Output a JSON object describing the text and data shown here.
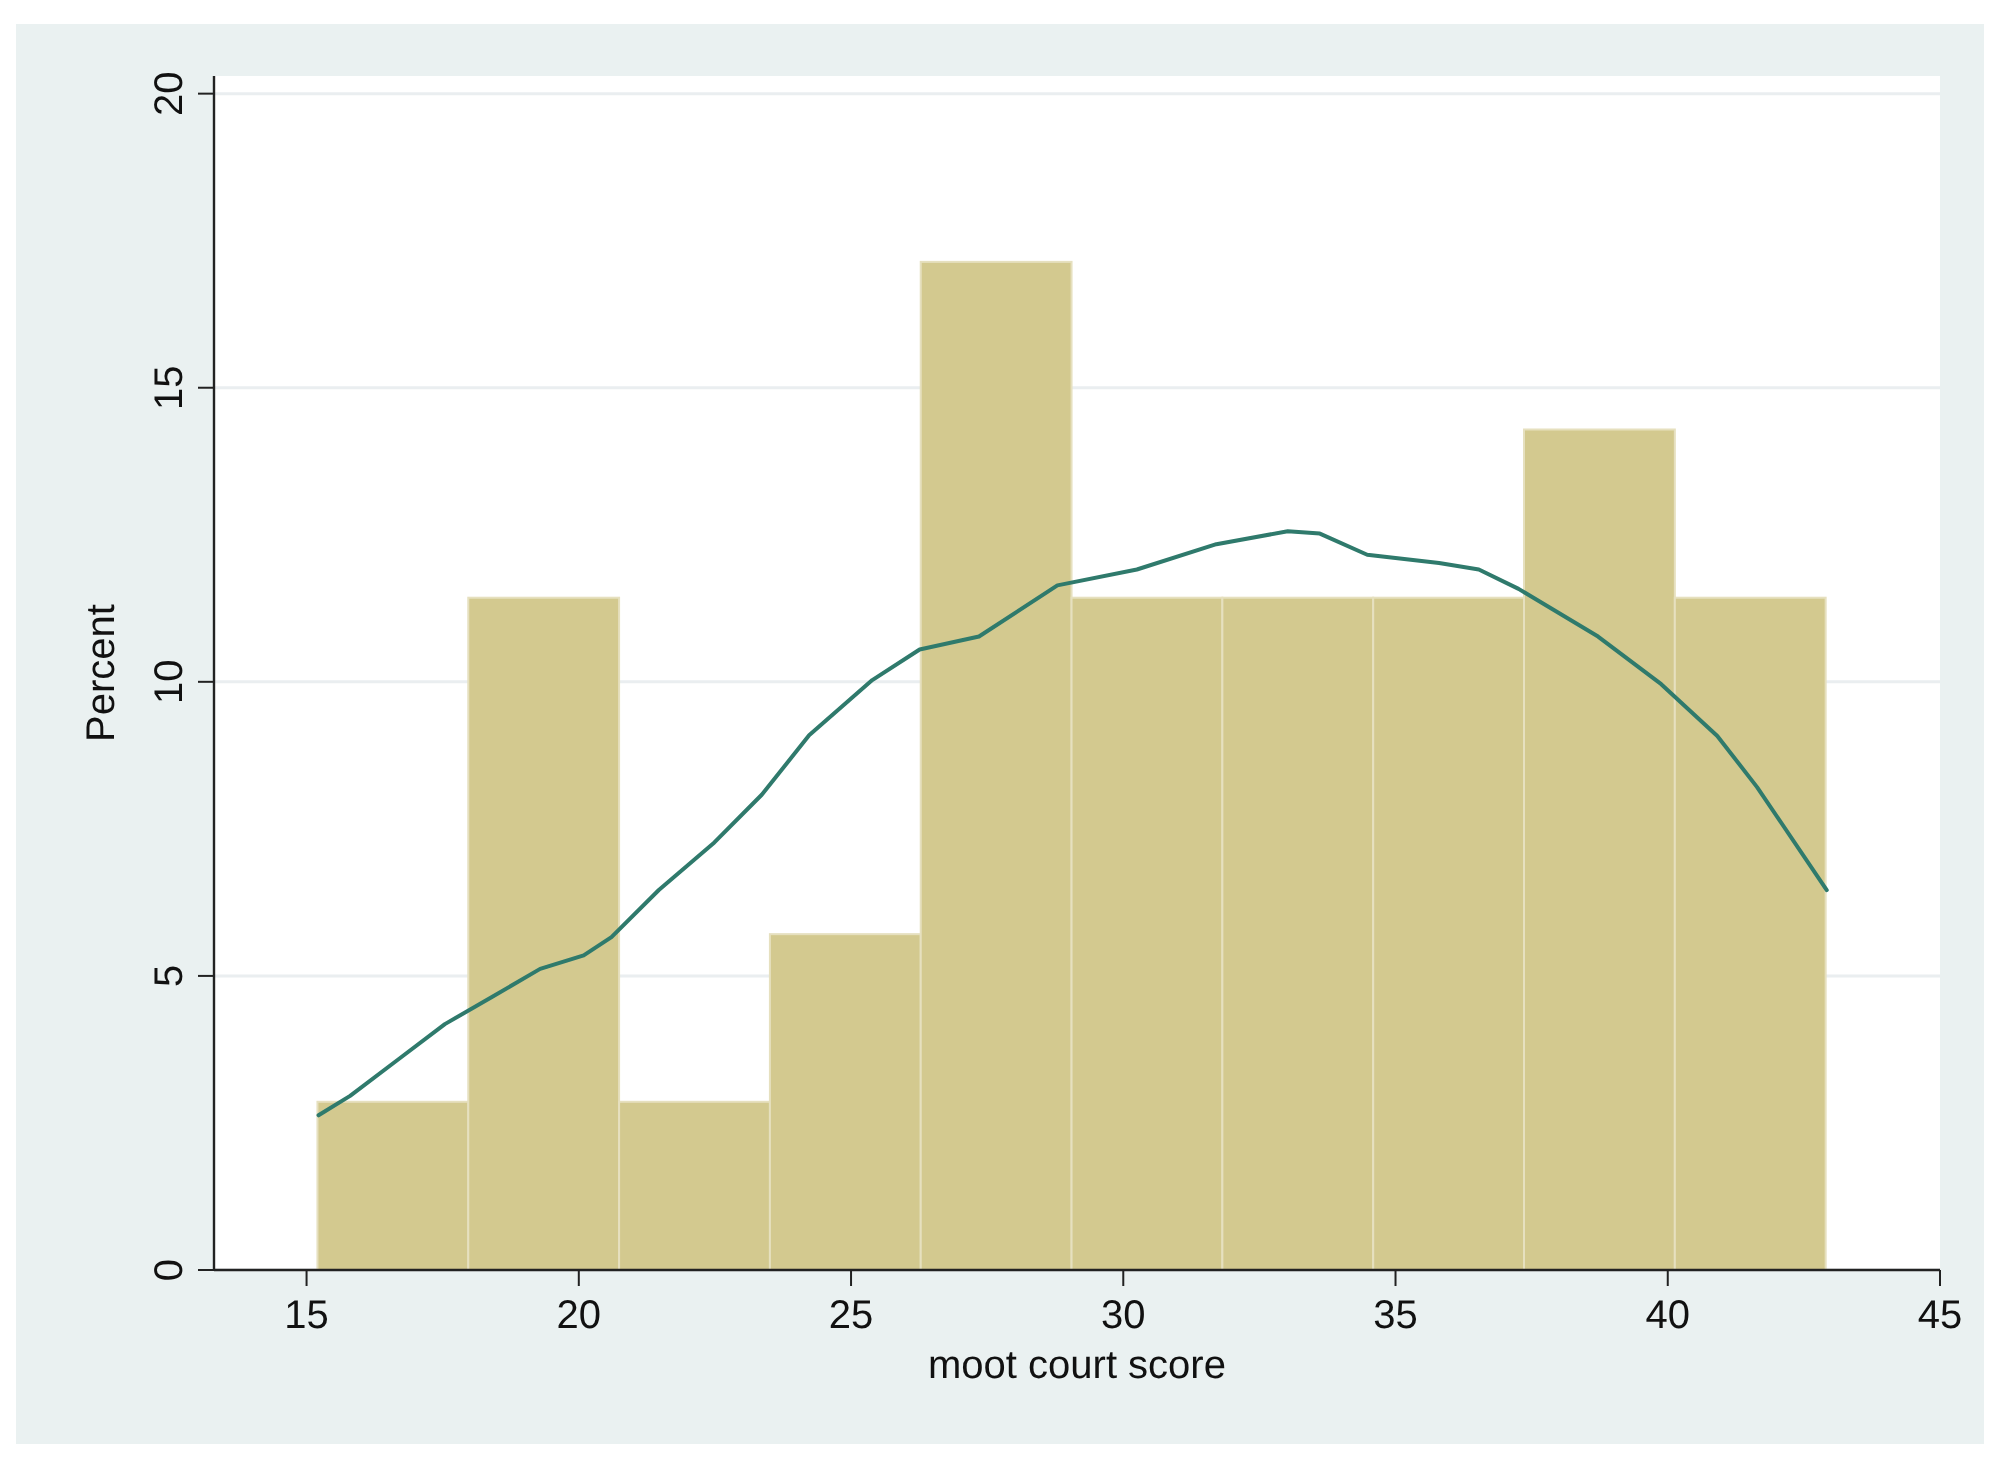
{
  "chart_data": {
    "type": "histogram",
    "xlabel": "moot court score",
    "ylabel": "Percent",
    "xlim": [
      13.3,
      45
    ],
    "xticks": [
      15,
      20,
      25,
      30,
      35,
      40,
      45
    ],
    "ylim": [
      0,
      20.3
    ],
    "yticks": [
      0,
      5,
      10,
      15,
      20
    ],
    "grid": "y",
    "bins": [
      15.2,
      17.97,
      20.74,
      23.51,
      26.28,
      29.05,
      31.82,
      34.59,
      37.36,
      40.13,
      42.9
    ],
    "series": [
      {
        "color": "#d3c98f",
        "values": [
          2.86,
          11.43,
          2.86,
          5.71,
          17.14,
          11.43,
          11.43,
          11.43,
          14.29,
          11.43
        ]
      },
      {
        "type": "line",
        "color": "#2f7a6c",
        "x": [
          15.22,
          15.8,
          16.67,
          17.54,
          18.42,
          19.29,
          20.09,
          20.6,
          21.47,
          22.49,
          23.36,
          24.23,
          25.39,
          26.26,
          27.35,
          28.79,
          30.25,
          31.71,
          33.02,
          33.61,
          34.48,
          35.8,
          36.53,
          37.26,
          38.72,
          39.88,
          40.91,
          41.64,
          42.92
        ],
        "values": [
          2.63,
          2.96,
          3.57,
          4.18,
          4.65,
          5.12,
          5.35,
          5.66,
          6.46,
          7.27,
          8.08,
          9.09,
          10.03,
          10.55,
          10.77,
          11.64,
          11.91,
          12.34,
          12.56,
          12.52,
          12.16,
          12.02,
          11.91,
          11.58,
          10.77,
          9.96,
          9.08,
          8.21,
          6.46
        ]
      }
    ]
  }
}
